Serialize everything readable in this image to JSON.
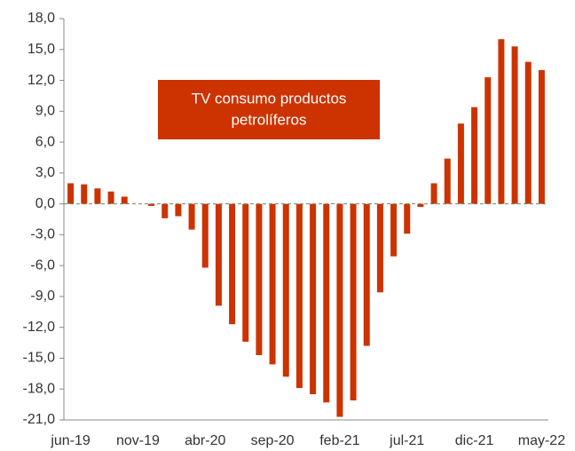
{
  "chart_data": {
    "type": "bar",
    "annotation": [
      "TV consumo productos",
      "petrolíferos"
    ],
    "categories": [
      "jun-19",
      null,
      null,
      null,
      null,
      "nov-19",
      null,
      null,
      null,
      null,
      "abr-20",
      null,
      null,
      null,
      null,
      "sep-20",
      null,
      null,
      null,
      null,
      "feb-21",
      null,
      null,
      null,
      null,
      "jul-21",
      null,
      null,
      null,
      null,
      "dic-21",
      null,
      null,
      null,
      null,
      "may-22"
    ],
    "values": [
      2.0,
      1.9,
      1.5,
      1.2,
      0.7,
      0.0,
      -0.2,
      -1.4,
      -1.2,
      -2.5,
      -6.2,
      -9.9,
      -11.7,
      -13.4,
      -14.7,
      -15.6,
      -16.8,
      -17.9,
      -18.5,
      -19.3,
      -20.7,
      -19.1,
      -13.8,
      -8.6,
      -5.1,
      -2.9,
      -0.3,
      2.0,
      4.4,
      7.8,
      9.4,
      12.3,
      16.0,
      15.3,
      13.8,
      13.0
    ],
    "color": "#cc3300",
    "ylim": [
      -21,
      18
    ],
    "yticks": [
      {
        "value": 18,
        "label": "18,0"
      },
      {
        "value": 15,
        "label": "15,0"
      },
      {
        "value": 12,
        "label": "12,0"
      },
      {
        "value": 9,
        "label": "9,0"
      },
      {
        "value": 6,
        "label": "6,0"
      },
      {
        "value": 3,
        "label": "3,0"
      },
      {
        "value": 0,
        "label": "0,0"
      },
      {
        "value": -3,
        "label": "-3,0"
      },
      {
        "value": -6,
        "label": "-6,0"
      },
      {
        "value": -9,
        "label": "-9,0"
      },
      {
        "value": -12,
        "label": "-12,0"
      },
      {
        "value": -15,
        "label": "-15,0"
      },
      {
        "value": -18,
        "label": "-18,0"
      },
      {
        "value": -21,
        "label": "-21,0"
      }
    ],
    "grid": false
  }
}
